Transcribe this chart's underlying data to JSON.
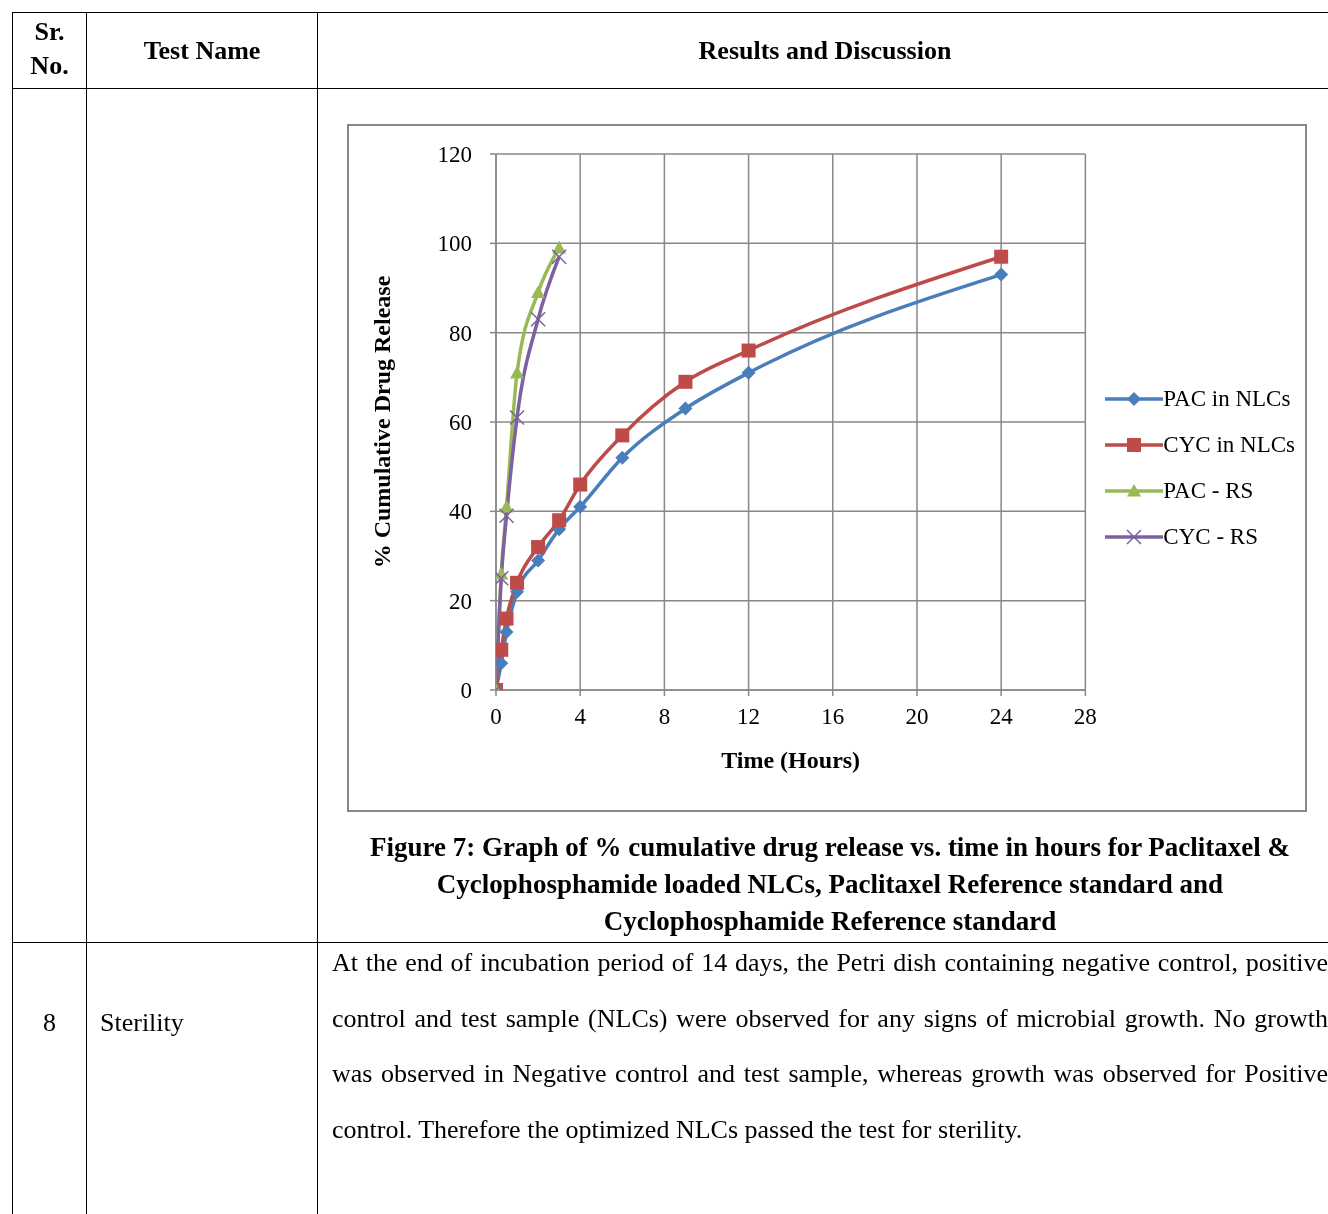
{
  "chart_data": {
    "type": "line",
    "title": "Figure 7: Graph of % cumulative drug release vs. time in hours for Paclitaxel & Cyclophosphamide loaded NLCs, Paclitaxel Reference standard and Cyclophosphamide Reference standard",
    "xlabel": "Time (Hours)",
    "ylabel": "% Cumulative Drug Release",
    "annotations": [
      "Sr. No.",
      "Test Name",
      "Results and Discussion",
      "8",
      "Sterility",
      "At the end of incubation period of 14 days, the Petri dish containing negative control, positive control and test sample (NLCs) were observed for any signs of microbial growth. No growth was observed in Negative control and test sample, whereas growth was observed for Positive control. Therefore the optimized NLCs passed the test for sterility."
    ],
    "series": [
      {
        "name": "PAC in NLCs",
        "color": "#4a7ebb",
        "marker": "diamond",
        "x": [
          0,
          0.25,
          0.5,
          1,
          2,
          3,
          4,
          6,
          9,
          12,
          24
        ],
        "values": [
          0,
          6,
          13,
          22,
          29,
          36,
          41,
          52,
          63,
          71,
          93
        ]
      },
      {
        "name": "CYC in NLCs",
        "color": "#be4b48",
        "marker": "square",
        "x": [
          0,
          0.25,
          0.5,
          1,
          2,
          3,
          4,
          6,
          9,
          12,
          24
        ],
        "values": [
          0,
          9,
          16,
          24,
          32,
          38,
          46,
          57,
          69,
          76,
          97
        ]
      },
      {
        "name": "PAC - RS",
        "color": "#98b954",
        "marker": "triangle",
        "x": [
          0,
          0.25,
          0.5,
          1,
          2,
          3
        ],
        "values": [
          0,
          26,
          41,
          71,
          89,
          99
        ]
      },
      {
        "name": "CYC - RS",
        "color": "#7d60a0",
        "marker": "cross",
        "x": [
          0,
          0.25,
          0.5,
          1,
          2,
          3
        ],
        "values": [
          0,
          25,
          39,
          61,
          83,
          97
        ]
      }
    ],
    "xlim": [
      0,
      28
    ],
    "xticks": [
      0,
      4,
      8,
      12,
      16,
      20,
      24,
      28
    ],
    "ylim": [
      0,
      120
    ],
    "yticks": [
      0,
      20,
      40,
      60,
      80,
      100,
      120
    ],
    "grid": true,
    "legend": "right",
    "line_style": "solid"
  }
}
